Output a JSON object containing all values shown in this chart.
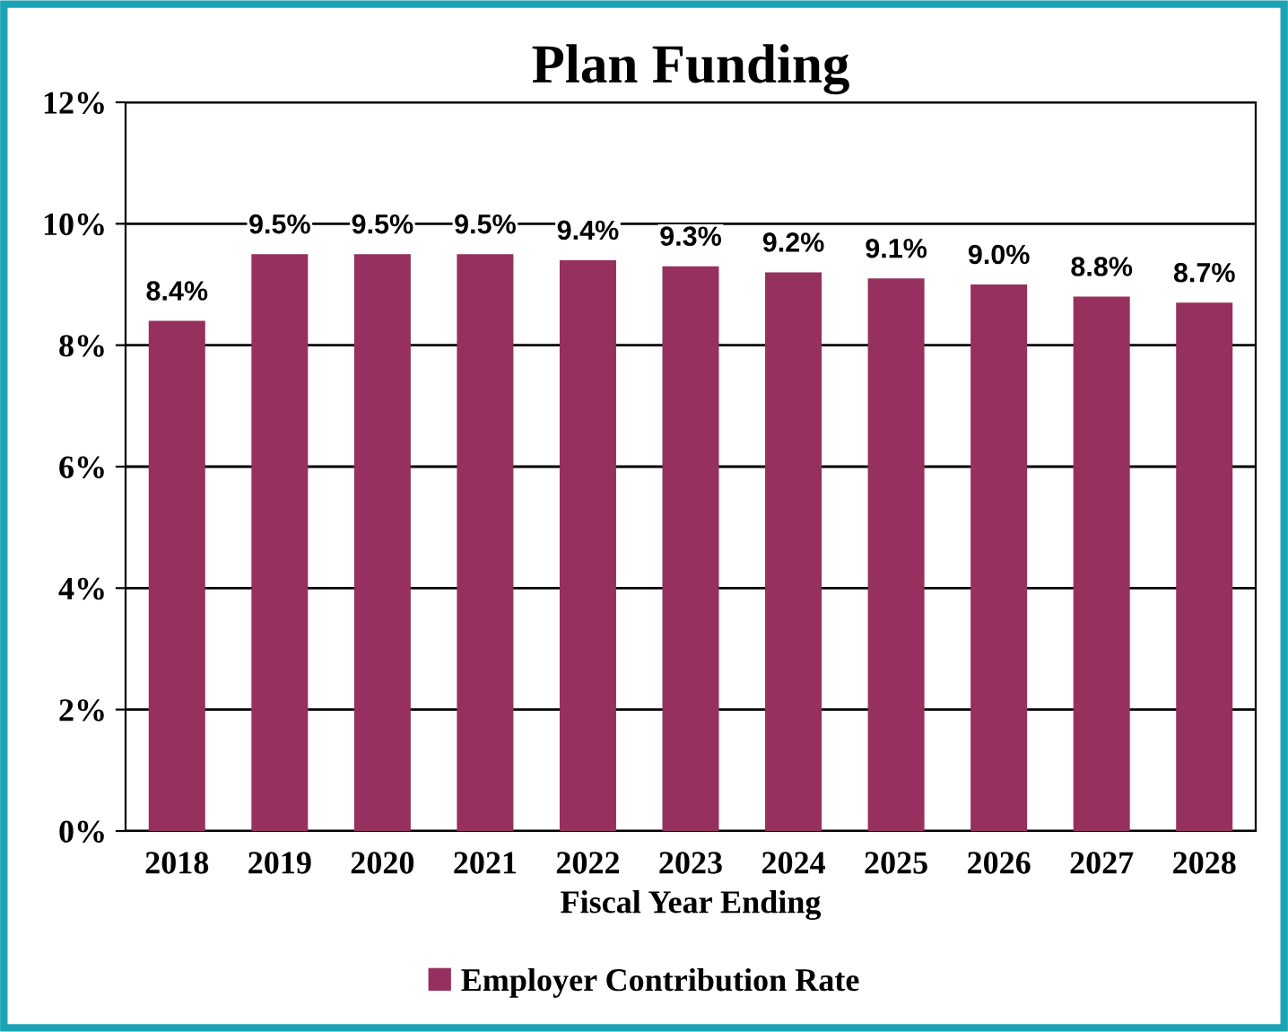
{
  "chart_data": {
    "type": "bar",
    "title": "Plan Funding",
    "xlabel": "Fiscal Year Ending",
    "categories": [
      "2018",
      "2019",
      "2020",
      "2021",
      "2022",
      "2023",
      "2024",
      "2025",
      "2026",
      "2027",
      "2028"
    ],
    "series": [
      {
        "name": "Employer Contribution Rate",
        "color": "#96305e",
        "values": [
          8.4,
          9.5,
          9.5,
          9.5,
          9.4,
          9.3,
          9.2,
          9.1,
          9.0,
          8.8,
          8.7
        ],
        "value_labels": [
          "8.4%",
          "9.5%",
          "9.5%",
          "9.5%",
          "9.4%",
          "9.3%",
          "9.2%",
          "9.1%",
          "9.0%",
          "8.8%",
          "8.7%"
        ]
      }
    ],
    "ylim": [
      0,
      12
    ],
    "yticks": [
      {
        "value": 0,
        "label": "0%"
      },
      {
        "value": 2,
        "label": "2%"
      },
      {
        "value": 4,
        "label": "4%"
      },
      {
        "value": 6,
        "label": "6%"
      },
      {
        "value": 8,
        "label": "8%"
      },
      {
        "value": 10,
        "label": "10%"
      },
      {
        "value": 12,
        "label": "12%"
      }
    ],
    "grid": "y",
    "legend": "bottom"
  }
}
